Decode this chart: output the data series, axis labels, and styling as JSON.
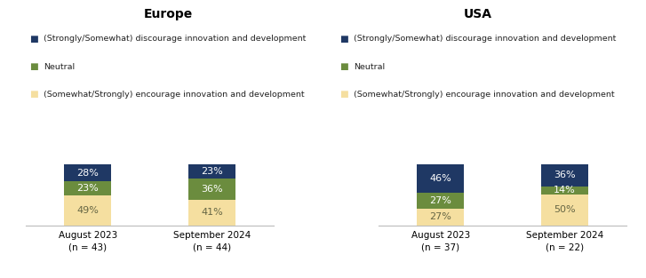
{
  "europe": {
    "title": "Europe",
    "bars": [
      {
        "label": "August 2023",
        "sublabel": "(n = 43)",
        "discourage": 28,
        "neutral": 23,
        "encourage": 49
      },
      {
        "label": "September 2024",
        "sublabel": "(n = 44)",
        "discourage": 23,
        "neutral": 36,
        "encourage": 41
      }
    ]
  },
  "usa": {
    "title": "USA",
    "bars": [
      {
        "label": "August 2023",
        "sublabel": "(n = 37)",
        "discourage": 46,
        "neutral": 27,
        "encourage": 27
      },
      {
        "label": "September 2024",
        "sublabel": "(n = 22)",
        "discourage": 36,
        "neutral": 14,
        "encourage": 50
      }
    ]
  },
  "colors": {
    "discourage": "#1F3864",
    "neutral": "#6B8C3E",
    "encourage": "#F5DFA0"
  },
  "legend_labels": [
    "(Strongly/Somewhat) discourage innovation and development",
    "Neutral",
    "(Somewhat/Strongly) encourage innovation and development"
  ],
  "bar_width": 0.38,
  "background_color": "#ffffff",
  "ylim": [
    0,
    105
  ]
}
